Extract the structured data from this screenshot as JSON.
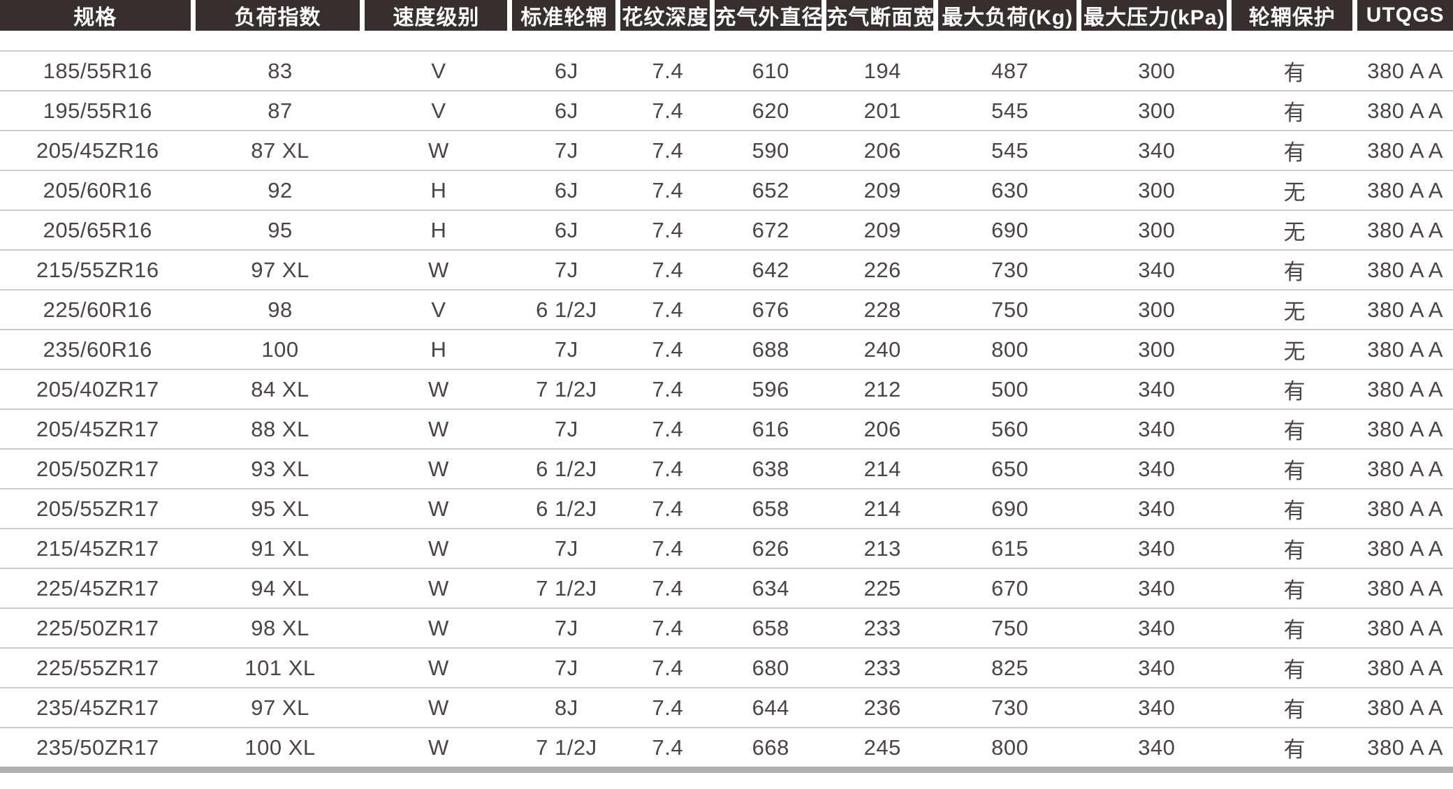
{
  "colors": {
    "header_bg": "#362f2d",
    "header_text": "#ffffff",
    "body_text": "#4b4442",
    "row_divider": "#cbcbcb",
    "bottom_bar": "#b2afad"
  },
  "table": {
    "columns": [
      {
        "id": "spec",
        "label": "规格"
      },
      {
        "id": "load-index",
        "label": "负荷指数"
      },
      {
        "id": "speed-rating",
        "label": "速度级别"
      },
      {
        "id": "standard-rim",
        "label": "标准轮辋"
      },
      {
        "id": "tread-depth",
        "label": "花纹深度"
      },
      {
        "id": "inflated-outer-diameter",
        "label": "充气外直径"
      },
      {
        "id": "inflated-section-width",
        "label": "充气断面宽"
      },
      {
        "id": "max-load-kg",
        "label": "最大负荷(Kg)"
      },
      {
        "id": "max-pressure-kpa",
        "label": "最大压力(kPa)"
      },
      {
        "id": "rim-protection",
        "label": "轮辋保护"
      },
      {
        "id": "utqgs",
        "label": "UTQGS"
      }
    ],
    "rows": [
      [
        "185/55R16",
        "83",
        "V",
        "6J",
        "7.4",
        "610",
        "194",
        "487",
        "300",
        "有",
        "380 A A"
      ],
      [
        "195/55R16",
        "87",
        "V",
        "6J",
        "7.4",
        "620",
        "201",
        "545",
        "300",
        "有",
        "380 A A"
      ],
      [
        "205/45ZR16",
        "87 XL",
        "W",
        "7J",
        "7.4",
        "590",
        "206",
        "545",
        "340",
        "有",
        "380 A A"
      ],
      [
        "205/60R16",
        "92",
        "H",
        "6J",
        "7.4",
        "652",
        "209",
        "630",
        "300",
        "无",
        "380 A A"
      ],
      [
        "205/65R16",
        "95",
        "H",
        "6J",
        "7.4",
        "672",
        "209",
        "690",
        "300",
        "无",
        "380 A A"
      ],
      [
        "215/55ZR16",
        "97 XL",
        "W",
        "7J",
        "7.4",
        "642",
        "226",
        "730",
        "340",
        "有",
        "380 A A"
      ],
      [
        "225/60R16",
        "98",
        "V",
        "6 1/2J",
        "7.4",
        "676",
        "228",
        "750",
        "300",
        "无",
        "380 A A"
      ],
      [
        "235/60R16",
        "100",
        "H",
        "7J",
        "7.4",
        "688",
        "240",
        "800",
        "300",
        "无",
        "380 A A"
      ],
      [
        "205/40ZR17",
        "84 XL",
        "W",
        "7 1/2J",
        "7.4",
        "596",
        "212",
        "500",
        "340",
        "有",
        "380 A A"
      ],
      [
        "205/45ZR17",
        "88 XL",
        "W",
        "7J",
        "7.4",
        "616",
        "206",
        "560",
        "340",
        "有",
        "380 A A"
      ],
      [
        "205/50ZR17",
        "93 XL",
        "W",
        "6 1/2J",
        "7.4",
        "638",
        "214",
        "650",
        "340",
        "有",
        "380 A A"
      ],
      [
        "205/55ZR17",
        "95 XL",
        "W",
        "6 1/2J",
        "7.4",
        "658",
        "214",
        "690",
        "340",
        "有",
        "380 A A"
      ],
      [
        "215/45ZR17",
        "91 XL",
        "W",
        "7J",
        "7.4",
        "626",
        "213",
        "615",
        "340",
        "有",
        "380 A A"
      ],
      [
        "225/45ZR17",
        "94 XL",
        "W",
        "7 1/2J",
        "7.4",
        "634",
        "225",
        "670",
        "340",
        "有",
        "380 A A"
      ],
      [
        "225/50ZR17",
        "98 XL",
        "W",
        "7J",
        "7.4",
        "658",
        "233",
        "750",
        "340",
        "有",
        "380 A A"
      ],
      [
        "225/55ZR17",
        "101 XL",
        "W",
        "7J",
        "7.4",
        "680",
        "233",
        "825",
        "340",
        "有",
        "380 A A"
      ],
      [
        "235/45ZR17",
        "97 XL",
        "W",
        "8J",
        "7.4",
        "644",
        "236",
        "730",
        "340",
        "有",
        "380 A A"
      ],
      [
        "235/50ZR17",
        "100 XL",
        "W",
        "7 1/2J",
        "7.4",
        "668",
        "245",
        "800",
        "340",
        "有",
        "380 A A"
      ]
    ]
  }
}
